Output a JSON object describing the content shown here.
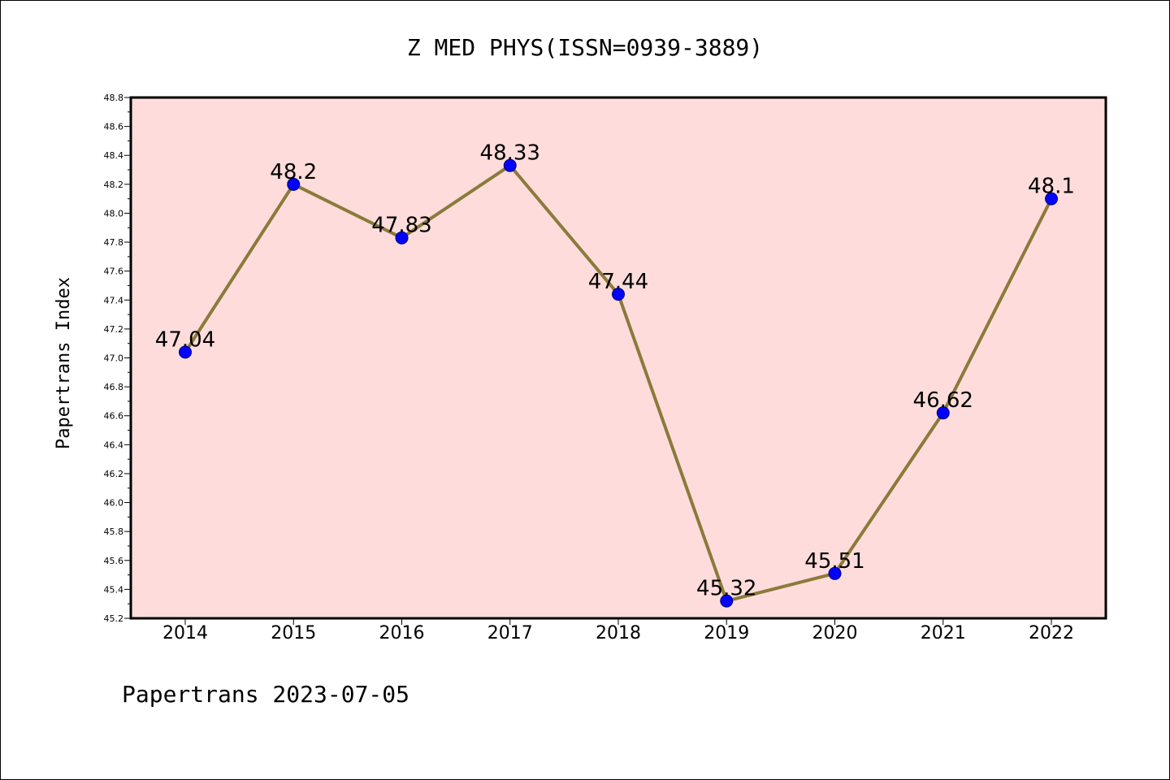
{
  "colors": {
    "plot_background": "#fddcdb",
    "line": "#8b7a3a",
    "marker": "#0000ff",
    "marker_edge": "#00007a",
    "axes": "#000000"
  },
  "chart_data": {
    "type": "line",
    "title": "Z MED PHYS(ISSN=0939-3889)",
    "xlabel": "",
    "ylabel": "Papertrans Index",
    "categories": [
      "2014",
      "2015",
      "2016",
      "2017",
      "2018",
      "2019",
      "2020",
      "2021",
      "2022"
    ],
    "series": [
      {
        "values": [
          47.04,
          48.2,
          47.83,
          48.33,
          47.44,
          45.32,
          45.51,
          46.62,
          48.1
        ],
        "labels": [
          "47.04",
          "48.2",
          "47.83",
          "48.33",
          "47.44",
          "45.32",
          "45.51",
          "46.62",
          "48.1"
        ]
      }
    ],
    "ylim": [
      45.2,
      48.8
    ],
    "yticks": [
      "45.2",
      "45.4",
      "45.6",
      "45.8",
      "46.0",
      "46.2",
      "46.4",
      "46.6",
      "46.8",
      "47.0",
      "47.2",
      "47.4",
      "47.6",
      "47.8",
      "48.0",
      "48.2",
      "48.4",
      "48.6",
      "48.8"
    ],
    "grid": false,
    "legend": "none"
  },
  "footer": {
    "text": "Papertrans 2023-07-05"
  }
}
